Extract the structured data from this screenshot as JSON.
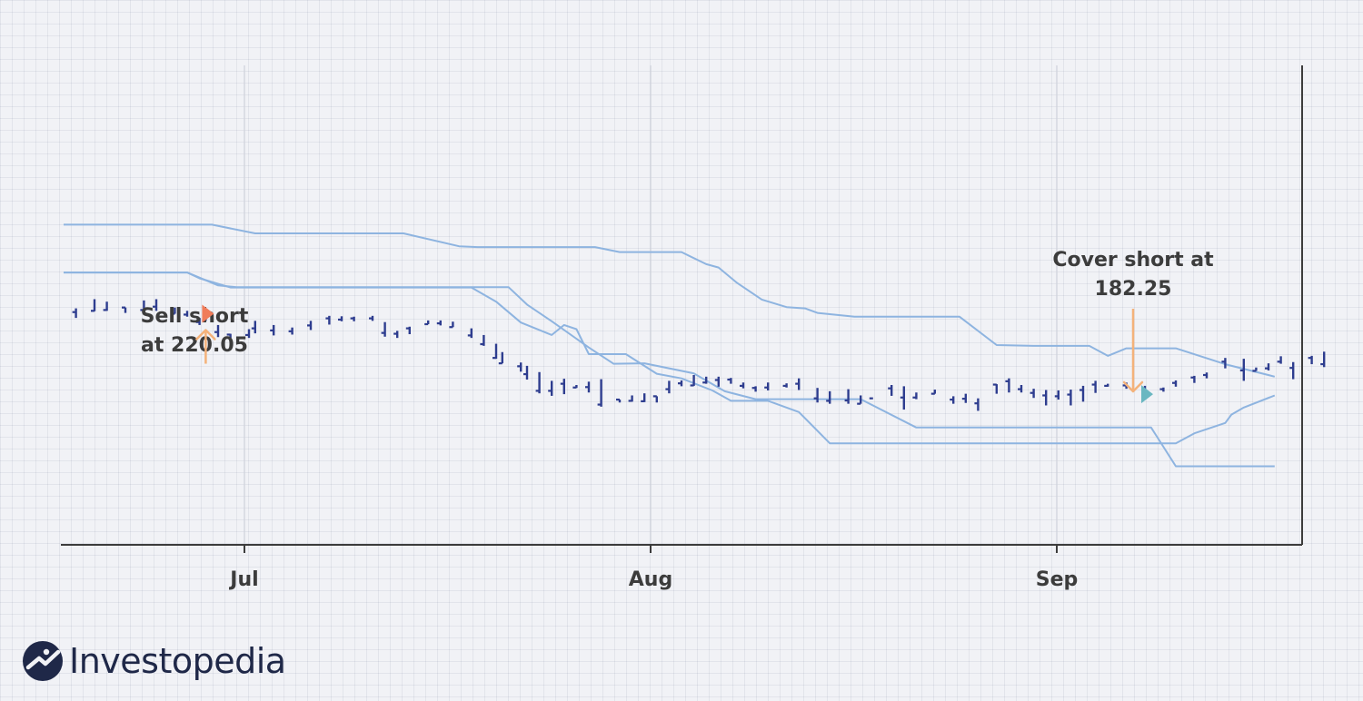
{
  "chart_data": {
    "type": "line",
    "x_ticks": [
      "Jul",
      "Aug",
      "Sep"
    ],
    "ylim": [
      160,
      245
    ],
    "channel": {
      "upper": [
        [
          0,
          232.5
        ],
        [
          24,
          232.5
        ],
        [
          31,
          230.4
        ],
        [
          55,
          230.4
        ],
        [
          64,
          227.3
        ],
        [
          67,
          227.1
        ],
        [
          72,
          227.1
        ],
        [
          86,
          227.1
        ],
        [
          90,
          225.9
        ],
        [
          100,
          225.9
        ],
        [
          104,
          223.0
        ],
        [
          106,
          222.2
        ],
        [
          109,
          218.5
        ],
        [
          113,
          214.5
        ],
        [
          117,
          212.7
        ],
        [
          120,
          212.4
        ],
        [
          122,
          211.3
        ],
        [
          128,
          210.4
        ],
        [
          145,
          210.4
        ],
        [
          151,
          203.6
        ],
        [
          157,
          203.4
        ],
        [
          166,
          203.4
        ],
        [
          169,
          201.0
        ],
        [
          172,
          202.8
        ],
        [
          180,
          202.8
        ],
        [
          188,
          199.0
        ],
        [
          196,
          196.0
        ]
      ],
      "middle": [
        [
          0,
          221.0
        ],
        [
          20,
          221.0
        ],
        [
          22,
          219.6
        ],
        [
          27,
          217.4
        ],
        [
          55,
          217.4
        ],
        [
          66,
          217.4
        ],
        [
          70,
          214.0
        ],
        [
          74,
          209.0
        ],
        [
          79,
          206.0
        ],
        [
          81,
          208.4
        ],
        [
          83,
          207.4
        ],
        [
          85,
          201.4
        ],
        [
          91,
          201.4
        ],
        [
          96,
          196.7
        ],
        [
          100,
          195.6
        ],
        [
          105,
          192.7
        ],
        [
          108,
          190.2
        ],
        [
          114,
          190.2
        ],
        [
          119,
          187.5
        ],
        [
          124,
          180.0
        ],
        [
          142,
          180.0
        ],
        [
          161,
          180.0
        ],
        [
          180,
          180.0
        ],
        [
          183,
          182.4
        ],
        [
          188,
          184.9
        ],
        [
          189,
          186.9
        ],
        [
          191,
          188.6
        ],
        [
          196,
          191.5
        ]
      ],
      "lower": [
        [
          0,
          221.0
        ],
        [
          20,
          221.0
        ],
        [
          25,
          217.9
        ],
        [
          28,
          217.5
        ],
        [
          55,
          217.5
        ],
        [
          72,
          217.5
        ],
        [
          75,
          213.3
        ],
        [
          79,
          209.3
        ],
        [
          85,
          203.0
        ],
        [
          89,
          199.1
        ],
        [
          94,
          199.2
        ],
        [
          102,
          196.8
        ],
        [
          107,
          192.5
        ],
        [
          112,
          190.6
        ],
        [
          121,
          190.6
        ],
        [
          129,
          190.6
        ],
        [
          138,
          183.8
        ],
        [
          148,
          183.8
        ],
        [
          163,
          183.8
        ],
        [
          176,
          183.8
        ],
        [
          180,
          174.5
        ],
        [
          187,
          174.5
        ],
        [
          196,
          174.5
        ]
      ]
    },
    "ohlc_bars": [
      [
        2,
        212.4,
        210.1,
        211.5
      ],
      [
        5,
        214.6,
        211.7,
        211.8
      ],
      [
        7,
        214.0,
        211.8,
        212.0
      ],
      [
        10,
        212.6,
        211.3,
        212.6
      ],
      [
        13,
        214.3,
        211.5,
        212.0
      ],
      [
        15,
        214.6,
        211.8,
        212.8
      ],
      [
        18,
        212.6,
        211.1,
        211.1
      ],
      [
        20,
        211.8,
        210.4,
        210.9
      ],
      [
        22,
        210.1,
        208.4,
        209.1
      ],
      [
        23,
        211.3,
        209.4,
        209.4
      ],
      [
        25,
        208.4,
        205.5,
        206.7
      ],
      [
        27,
        206.3,
        205.3,
        206.1
      ],
      [
        30,
        207.4,
        205.3,
        206.0
      ],
      [
        31,
        209.4,
        206.4,
        207.6
      ],
      [
        34,
        208.4,
        205.9,
        207.1
      ],
      [
        37,
        207.8,
        206.1,
        206.9
      ],
      [
        40,
        209.4,
        207.2,
        208.3
      ],
      [
        43,
        210.6,
        208.5,
        210.0
      ],
      [
        45,
        210.5,
        209.3,
        209.7
      ],
      [
        47,
        210.4,
        209.3,
        210.0
      ],
      [
        50,
        210.6,
        209.4,
        210.0
      ],
      [
        52,
        209.1,
        205.6,
        206.5
      ],
      [
        54,
        207.0,
        205.3,
        206.3
      ],
      [
        56,
        208.0,
        206.2,
        207.6
      ],
      [
        59,
        209.5,
        208.6,
        208.6
      ],
      [
        61,
        209.5,
        208.3,
        208.8
      ],
      [
        63,
        209.2,
        207.9,
        207.9
      ],
      [
        66,
        207.6,
        205.3,
        205.9
      ],
      [
        68,
        206.0,
        203.4,
        203.8
      ],
      [
        70,
        203.9,
        200.3,
        200.5
      ],
      [
        71,
        201.9,
        199.2,
        199.2
      ],
      [
        74,
        199.4,
        197.2,
        198.5
      ],
      [
        75,
        198.6,
        195.3,
        196.6
      ],
      [
        77,
        197.1,
        192.0,
        192.6
      ],
      [
        79,
        195.0,
        191.4,
        192.6
      ],
      [
        81,
        195.5,
        191.8,
        194.3
      ],
      [
        83,
        194.0,
        193.3,
        193.4
      ],
      [
        85,
        194.8,
        192.2,
        193.5
      ],
      [
        87,
        195.4,
        188.8,
        189.3
      ],
      [
        90,
        190.5,
        189.8,
        190.5
      ],
      [
        92,
        191.5,
        190.0,
        190.2
      ],
      [
        94,
        192.0,
        189.9,
        190.1
      ],
      [
        96,
        191.3,
        189.8,
        191.3
      ],
      [
        98,
        195.0,
        192.0,
        193.0
      ],
      [
        100,
        195.1,
        193.7,
        194.4
      ],
      [
        102,
        196.4,
        193.8,
        193.9
      ],
      [
        104,
        196.0,
        194.3,
        194.6
      ],
      [
        106,
        196.0,
        193.6,
        195.2
      ],
      [
        108,
        195.7,
        194.3,
        195.3
      ],
      [
        110,
        194.6,
        193.2,
        193.8
      ],
      [
        112,
        193.7,
        192.4,
        193.3
      ],
      [
        114,
        194.6,
        192.7,
        193.4
      ],
      [
        117,
        194.4,
        193.4,
        193.8
      ],
      [
        119,
        195.6,
        192.8,
        194.3
      ],
      [
        122,
        193.3,
        189.8,
        190.8
      ],
      [
        124,
        192.5,
        189.5,
        190.2
      ],
      [
        127,
        193.0,
        189.5,
        190.3
      ],
      [
        129,
        191.5,
        189.5,
        189.5
      ],
      [
        131,
        190.8,
        190.8,
        190.8
      ],
      [
        134,
        194.0,
        191.4,
        193.2
      ],
      [
        136,
        193.7,
        188.1,
        191.0
      ],
      [
        138,
        192.2,
        190.6,
        191.0
      ],
      [
        141,
        192.9,
        191.9,
        191.9
      ],
      [
        144,
        191.3,
        189.5,
        190.5
      ],
      [
        146,
        191.9,
        189.7,
        190.7
      ],
      [
        148,
        190.8,
        187.8,
        189.6
      ],
      [
        151,
        194.2,
        191.9,
        194.1
      ],
      [
        153,
        195.6,
        192.2,
        194.9
      ],
      [
        155,
        194.0,
        192.2,
        193.0
      ],
      [
        157,
        193.1,
        190.9,
        192.1
      ],
      [
        159,
        192.8,
        189.1,
        191.5
      ],
      [
        161,
        192.7,
        190.5,
        191.3
      ],
      [
        163,
        192.9,
        189.1,
        191.7
      ],
      [
        165,
        193.8,
        190.0,
        192.8
      ],
      [
        167,
        195.0,
        192.1,
        194.1
      ],
      [
        169,
        194.3,
        193.6,
        193.8
      ],
      [
        172,
        194.6,
        193.1,
        193.9
      ],
      [
        175,
        193.8,
        192.9,
        193.1
      ],
      [
        178,
        193.4,
        192.4,
        193.0
      ],
      [
        180,
        195.1,
        193.6,
        194.5
      ],
      [
        183,
        196.2,
        194.5,
        195.8
      ],
      [
        185,
        197.0,
        195.6,
        196.4
      ],
      [
        188,
        200.5,
        198.0,
        199.6
      ],
      [
        191,
        200.3,
        195.0,
        197.5
      ],
      [
        193,
        198.2,
        197.4,
        197.4
      ],
      [
        195,
        199.2,
        197.5,
        198.0
      ],
      [
        197,
        200.9,
        199.1,
        199.6
      ],
      [
        199,
        199.5,
        195.4,
        198.1
      ],
      [
        202,
        201.0,
        199.0,
        200.5
      ],
      [
        204,
        202.0,
        198.3,
        199.0
      ]
    ],
    "annotations": [
      {
        "line1": "Sell short",
        "line2": "at 220.05",
        "type": "sell",
        "x": 23,
        "y": 211.1
      },
      {
        "line1": "Cover short at",
        "line2": "182.25",
        "type": "cover",
        "x": 175,
        "y": 191.8
      }
    ],
    "grid": true,
    "colors": {
      "bars": "#2e3d8f",
      "channel": "#8eb4e0",
      "axis": "#3c3c3c",
      "arrow": "#f4b27a",
      "sell_marker": "#f07c5a",
      "cover_marker": "#6ab7c1"
    }
  },
  "brand": {
    "name": "Investopedia",
    "colors": {
      "logo": "#1f2848"
    }
  }
}
